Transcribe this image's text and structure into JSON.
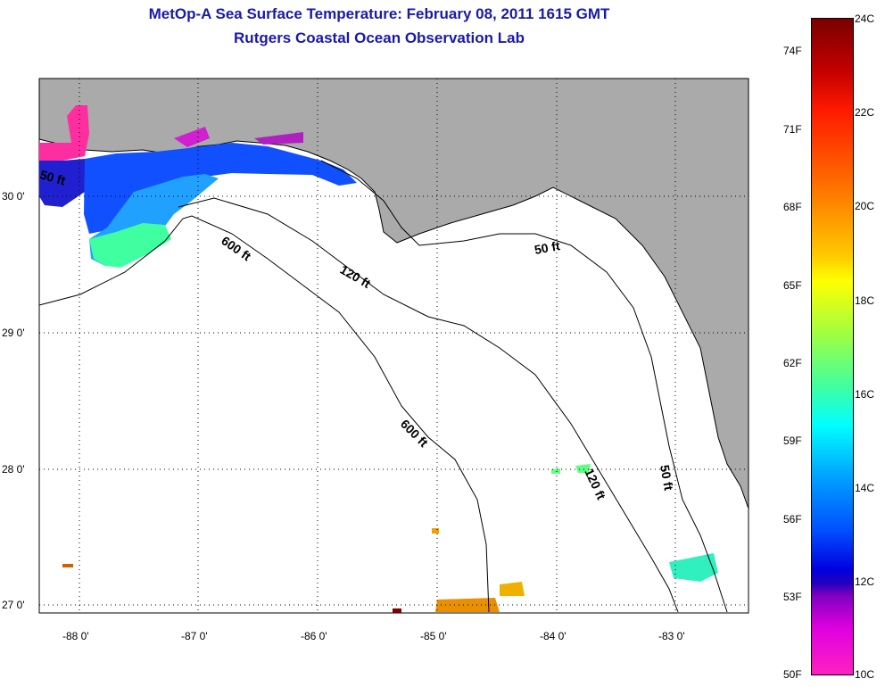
{
  "title_line1": "MetOp-A Sea Surface Temperature:  February 08, 2011 1615 GMT",
  "title_line2": "Rutgers Coastal Ocean Observation Lab",
  "lat_labels": [
    "30 0'",
    "29 0'",
    "28 0'",
    "27 0'"
  ],
  "lon_labels": [
    "-88 0'",
    "-87 0'",
    "-86 0'",
    "-85 0'",
    "-84 0'",
    "-83 0'"
  ],
  "contour_labels": [
    "50 ft",
    "600 ft",
    "120 ft",
    "50 ft",
    "600 ft",
    "120 ft",
    "50 ft"
  ],
  "colorbar_f": [
    "74F",
    "71F",
    "68F",
    "65F",
    "62F",
    "59F",
    "56F",
    "53F",
    "50F"
  ],
  "colorbar_c": [
    "24C",
    "22C",
    "20C",
    "18C",
    "16C",
    "14C",
    "12C",
    "10C"
  ],
  "colors": {
    "land": "#aaaaaa",
    "ocean": "#ffffff",
    "title": "#1a1aa8"
  }
}
